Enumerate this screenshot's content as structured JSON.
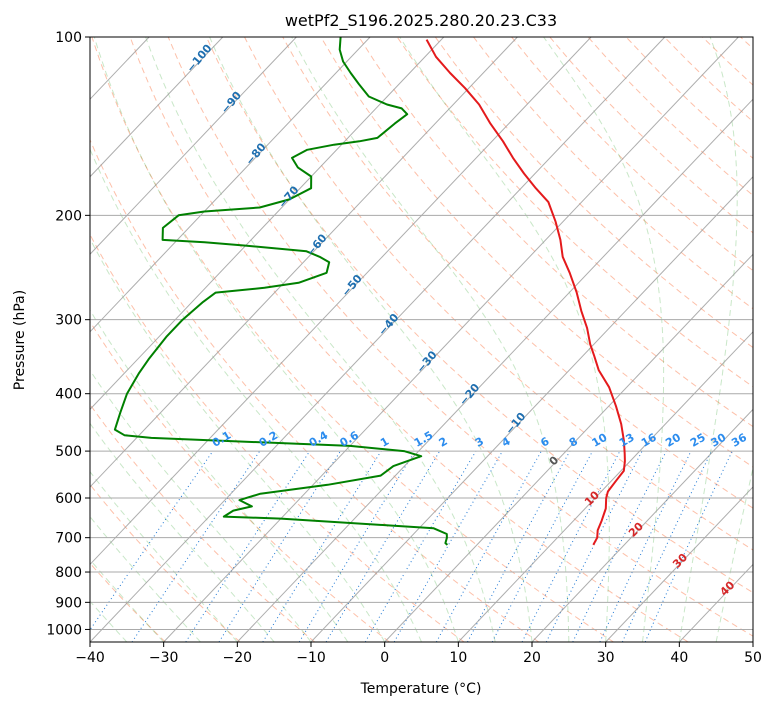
{
  "chart_data": {
    "type": "skew-t",
    "title": "wetPf2_S196.2025.280.20.23.C33",
    "xlabel": "Temperature (°C)",
    "ylabel": "Pressure (hPa)",
    "xlim": [
      -40,
      50
    ],
    "ylim_hPa": [
      1050,
      100
    ],
    "y_scale": "log",
    "x_ticks": [
      "−40",
      "−30",
      "−20",
      "−10",
      "0",
      "10",
      "20",
      "30",
      "40",
      "50"
    ],
    "y_ticks": [
      "100",
      "200",
      "300",
      "400",
      "500",
      "600",
      "700",
      "800",
      "900",
      "1000"
    ],
    "grid": true,
    "series": [
      {
        "role": "temperature",
        "color": "#e41a1c",
        "points": [
          [
            15.8,
            720
          ],
          [
            15.4,
            700
          ],
          [
            14.5,
            680
          ],
          [
            13.8,
            655
          ],
          [
            12.8,
            625
          ],
          [
            11.5,
            600
          ],
          [
            10.9,
            585
          ],
          [
            10.6,
            560
          ],
          [
            10.4,
            540
          ],
          [
            9.3,
            520
          ],
          [
            8.3,
            505
          ],
          [
            6.5,
            480
          ],
          [
            4.0,
            450
          ],
          [
            1.0,
            420
          ],
          [
            -2.4,
            390
          ],
          [
            -6.0,
            365
          ],
          [
            -8.5,
            345
          ],
          [
            -10.5,
            330
          ],
          [
            -13.0,
            310
          ],
          [
            -16.0,
            290
          ],
          [
            -19.0,
            270
          ],
          [
            -22.5,
            250
          ],
          [
            -25.5,
            235
          ],
          [
            -28.0,
            220
          ],
          [
            -31.0,
            205
          ],
          [
            -34.5,
            190
          ],
          [
            -38.0,
            180
          ],
          [
            -41.5,
            170
          ],
          [
            -45.0,
            160
          ],
          [
            -48.5,
            150
          ],
          [
            -52.5,
            140
          ],
          [
            -56.5,
            130
          ],
          [
            -60.5,
            122
          ],
          [
            -64.5,
            115
          ],
          [
            -68.5,
            108
          ],
          [
            -72.0,
            101
          ]
        ]
      },
      {
        "role": "dewpoint",
        "color": "#008000",
        "points": [
          [
            -4.0,
            720
          ],
          [
            -4.5,
            715
          ],
          [
            -5.0,
            700
          ],
          [
            -5.5,
            690
          ],
          [
            -8.0,
            675
          ],
          [
            -14.0,
            668
          ],
          [
            -30.0,
            650
          ],
          [
            -38.0,
            645
          ],
          [
            -37.5,
            630
          ],
          [
            -35.5,
            620
          ],
          [
            -38.0,
            605
          ],
          [
            -36.0,
            590
          ],
          [
            -28.0,
            570
          ],
          [
            -22.0,
            550
          ],
          [
            -21.5,
            530
          ],
          [
            -19.0,
            510
          ],
          [
            -22.0,
            500
          ],
          [
            -30.0,
            490
          ],
          [
            -58.0,
            475
          ],
          [
            -62.0,
            470
          ],
          [
            -64.0,
            460
          ],
          [
            -65.5,
            430
          ],
          [
            -67.0,
            400
          ],
          [
            -68.0,
            370
          ],
          [
            -68.5,
            350
          ],
          [
            -69.0,
            320
          ],
          [
            -69.0,
            300
          ],
          [
            -68.5,
            280
          ],
          [
            -68.0,
            270
          ],
          [
            -62.0,
            265
          ],
          [
            -58.0,
            260
          ],
          [
            -55.5,
            250
          ],
          [
            -56.5,
            240
          ],
          [
            -58.5,
            235
          ],
          [
            -61.0,
            230
          ],
          [
            -70.0,
            225
          ],
          [
            -76.0,
            222
          ],
          [
            -82.0,
            220
          ],
          [
            -83.5,
            210
          ],
          [
            -83.0,
            200
          ],
          [
            -80.0,
            197
          ],
          [
            -73.0,
            194
          ],
          [
            -70.0,
            188
          ],
          [
            -68.5,
            180
          ],
          [
            -70.0,
            172
          ],
          [
            -73.0,
            166
          ],
          [
            -75.0,
            160
          ],
          [
            -74.0,
            155
          ],
          [
            -71.0,
            152
          ],
          [
            -68.0,
            150
          ],
          [
            -66.0,
            148
          ],
          [
            -65.5,
            140
          ],
          [
            -65.0,
            135
          ],
          [
            -66.5,
            132
          ],
          [
            -69.0,
            130
          ],
          [
            -72.5,
            126
          ],
          [
            -75.5,
            120
          ],
          [
            -78.0,
            115
          ],
          [
            -80.5,
            110
          ],
          [
            -82.5,
            105
          ],
          [
            -84.0,
            100
          ]
        ]
      }
    ],
    "isotherm_labels": [
      "−100",
      "−90",
      "−80",
      "−70",
      "−60",
      "−50",
      "−40",
      "−30",
      "−20",
      "−10"
    ],
    "mixing_ratio_labels": [
      "0.1",
      "0.2",
      "0.4",
      "0.6",
      "1",
      "1.5",
      "2",
      "3",
      "4",
      "6",
      "8",
      "10",
      "13",
      "16",
      "20",
      "25",
      "30",
      "36"
    ],
    "isotherm_labels_warm": [
      "0",
      "10",
      "20",
      "30",
      "40"
    ]
  }
}
